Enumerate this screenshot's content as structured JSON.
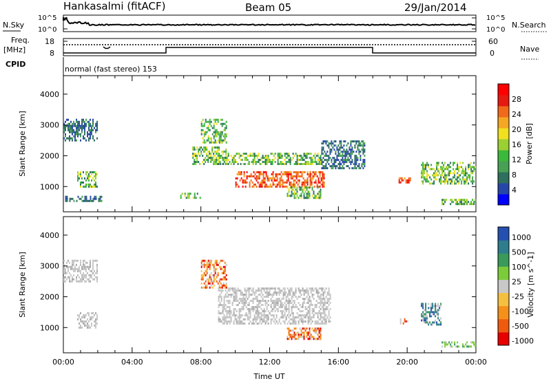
{
  "header": {
    "station": "Hankasalmi (fitACF)",
    "beam": "Beam 05",
    "date": "29/Jan/2014"
  },
  "noise_panel": {
    "left_label": "N.Sky",
    "right_label": "N.Search",
    "y_ticks": [
      "10^5",
      "10^0"
    ]
  },
  "freq_panel": {
    "left_label_1": "Freq.",
    "left_label_2": "[MHz]",
    "left_ticks": [
      "18",
      "8"
    ],
    "right_ticks": [
      "60",
      "0"
    ],
    "right_label": "Nave"
  },
  "cpid": {
    "label": "CPID",
    "value": "normal (fast stereo) 153"
  },
  "chart_data": [
    {
      "type": "heatmap",
      "title": "",
      "quantity": "power",
      "xlabel": "",
      "ylabel": "Slant Range [km]",
      "y_ticks": [
        1000,
        2000,
        3000,
        4000
      ],
      "ylim": [
        180,
        4600
      ],
      "xlim_hours": [
        0,
        24
      ],
      "colorbar_label": "Power [dB]",
      "colorbar_ticks": [
        4,
        8,
        12,
        16,
        20,
        24,
        28
      ],
      "colorbar_colors": [
        "#0000ff",
        "#2647a8",
        "#2e6f5e",
        "#48a055",
        "#3bb93b",
        "#9bd032",
        "#f0e020",
        "#f5a623",
        "#f06a1a",
        "#e61a10",
        "#ff0000"
      ],
      "echo_regions": [
        {
          "t0": 0.0,
          "t1": 2.0,
          "r0": 2500,
          "r1": 3000,
          "level": "low"
        },
        {
          "t0": 0.0,
          "t1": 2.0,
          "r0": 2850,
          "r1": 3200,
          "level": "low"
        },
        {
          "t0": 0.8,
          "t1": 2.0,
          "r0": 1000,
          "r1": 1500,
          "level": "mid"
        },
        {
          "t0": 0.1,
          "t1": 2.3,
          "r0": 500,
          "r1": 700,
          "level": "low"
        },
        {
          "t0": 6.8,
          "t1": 8.0,
          "r0": 600,
          "r1": 800,
          "level": "mid"
        },
        {
          "t0": 7.5,
          "t1": 9.5,
          "r0": 1700,
          "r1": 2300,
          "level": "mid"
        },
        {
          "t0": 8.0,
          "t1": 9.5,
          "r0": 2400,
          "r1": 3200,
          "level": "mid"
        },
        {
          "t0": 9.0,
          "t1": 15.0,
          "r0": 1700,
          "r1": 2100,
          "level": "mid"
        },
        {
          "t0": 10.0,
          "t1": 15.2,
          "r0": 1000,
          "r1": 1500,
          "level": "high"
        },
        {
          "t0": 13.0,
          "t1": 15.0,
          "r0": 650,
          "r1": 1000,
          "level": "mid"
        },
        {
          "t0": 15.0,
          "t1": 17.5,
          "r0": 1600,
          "r1": 2500,
          "level": "low"
        },
        {
          "t0": 19.5,
          "t1": 20.2,
          "r0": 1100,
          "r1": 1300,
          "level": "high"
        },
        {
          "t0": 20.8,
          "t1": 24.0,
          "r0": 1100,
          "r1": 1800,
          "level": "mid"
        },
        {
          "t0": 22.0,
          "t1": 24.0,
          "r0": 400,
          "r1": 600,
          "level": "mid"
        }
      ]
    },
    {
      "type": "heatmap",
      "title": "",
      "quantity": "velocity",
      "xlabel": "Time UT",
      "ylabel": "Slant Range [km]",
      "x_ticks": [
        "00:00",
        "04:00",
        "08:00",
        "12:00",
        "16:00",
        "20:00",
        "00:00"
      ],
      "y_ticks": [
        1000,
        2000,
        3000,
        4000
      ],
      "ylim": [
        180,
        4600
      ],
      "xlim_hours": [
        0,
        24
      ],
      "colorbar_label": "Velocity [m s^-1]",
      "colorbar_ticks": [
        1000,
        500,
        100,
        25,
        -25,
        -100,
        -500,
        -1000
      ],
      "colorbar_colors": [
        "#2650b0",
        "#2e7d8c",
        "#3a9a5a",
        "#7ccc3a",
        "#c8c8c8",
        "#f5c040",
        "#f5901a",
        "#f05a10",
        "#e60000"
      ],
      "echo_regions": [
        {
          "t0": 0.0,
          "t1": 2.0,
          "r0": 2500,
          "r1": 3200,
          "level": "grey"
        },
        {
          "t0": 0.8,
          "t1": 2.0,
          "r0": 1000,
          "r1": 1500,
          "level": "grey"
        },
        {
          "t0": 8.0,
          "t1": 9.5,
          "r0": 2300,
          "r1": 3200,
          "level": "orange"
        },
        {
          "t0": 9.0,
          "t1": 15.5,
          "r0": 1100,
          "r1": 2300,
          "level": "grey"
        },
        {
          "t0": 13.0,
          "t1": 15.0,
          "r0": 650,
          "r1": 1000,
          "level": "orange"
        },
        {
          "t0": 19.5,
          "t1": 20.2,
          "r0": 1100,
          "r1": 1300,
          "level": "orange"
        },
        {
          "t0": 20.8,
          "t1": 22.0,
          "r0": 1100,
          "r1": 1800,
          "level": "blue"
        },
        {
          "t0": 22.0,
          "t1": 24.0,
          "r0": 350,
          "r1": 550,
          "level": "green"
        }
      ]
    }
  ]
}
